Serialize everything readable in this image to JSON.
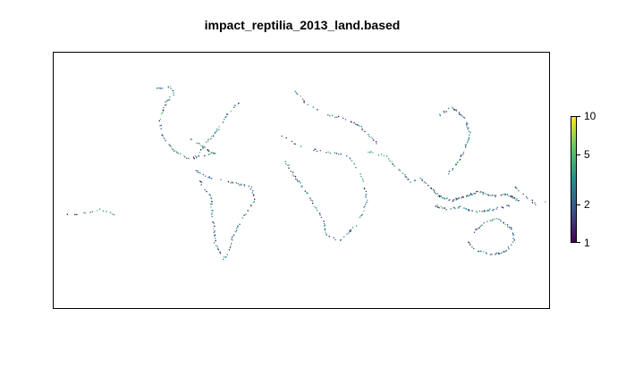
{
  "title": "impact_reptilia_2013_land.based",
  "legend": {
    "scale": "log",
    "min": 1,
    "max": 10,
    "ticks": [
      {
        "value": 10,
        "label": "10"
      },
      {
        "value": 5,
        "label": "5"
      },
      {
        "value": 2,
        "label": "2"
      },
      {
        "value": 1,
        "label": "1"
      }
    ],
    "colormap": [
      "#440154",
      "#3b528b",
      "#21908d",
      "#5dc863",
      "#fde725"
    ]
  },
  "map": {
    "projection": "cylindrical (lon/lat grid)",
    "lon_range": [
      -180,
      180
    ],
    "lat_range": [
      -90,
      90
    ],
    "grid": false
  }
}
